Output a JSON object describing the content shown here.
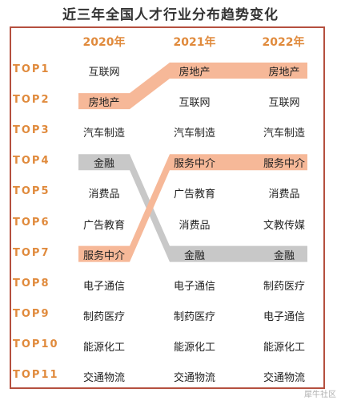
{
  "title": "近三年全国人才行业分布趋势变化",
  "years": [
    "2020年",
    "2021年",
    "2022年"
  ],
  "ranks": [
    "TOP1",
    "TOP2",
    "TOP3",
    "TOP4",
    "TOP5",
    "TOP6",
    "TOP7",
    "TOP8",
    "TOP9",
    "TOP10",
    "TOP11"
  ],
  "columns": [
    [
      "互联网",
      "房地产",
      "汽车制造",
      "金融",
      "消费品",
      "广告教育",
      "服务中介",
      "电子通信",
      "制药医疗",
      "能源化工",
      "交通物流"
    ],
    [
      "房地产",
      "互联网",
      "汽车制造",
      "服务中介",
      "广告教育",
      "消费品",
      "金融",
      "电子通信",
      "制药医疗",
      "能源化工",
      "交通物流"
    ],
    [
      "房地产",
      "互联网",
      "汽车制造",
      "服务中介",
      "消费品",
      "文教传媒",
      "金融",
      "制药医疗",
      "电子通信",
      "能源化工",
      "交通物流"
    ]
  ],
  "highlights": [
    {
      "item": "房地产",
      "ranks": [
        2,
        1,
        1
      ],
      "color": "#f6b898"
    },
    {
      "item": "金融",
      "ranks": [
        4,
        7,
        7
      ],
      "color": "#c8c8c8"
    },
    {
      "item": "服务中介",
      "ranks": [
        7,
        4,
        4
      ],
      "color": "#f6b898"
    }
  ],
  "colors": {
    "frame": "#b5503f",
    "header": "#e08a3c"
  },
  "watermark": "犀牛社区"
}
